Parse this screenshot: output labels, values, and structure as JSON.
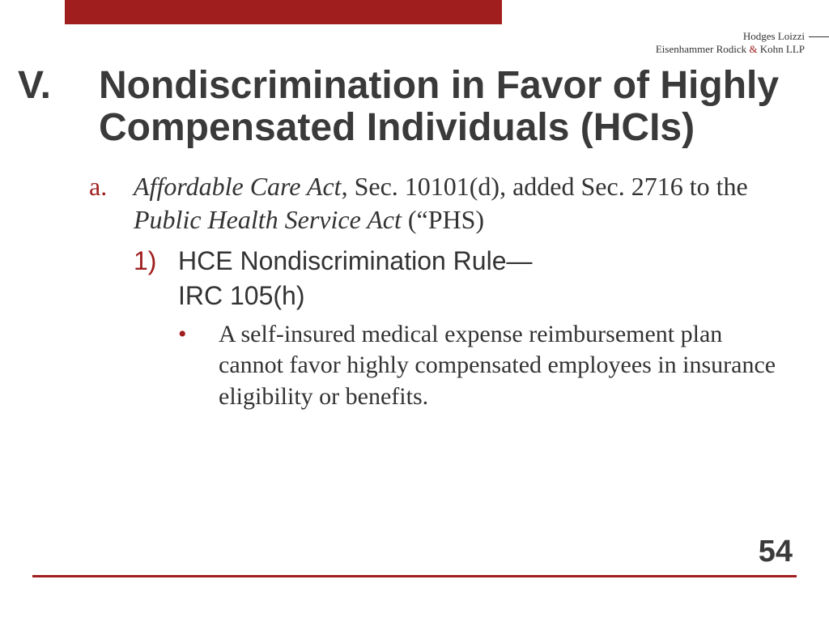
{
  "colors": {
    "accent": "#a01e1e",
    "text": "#3a3a3a",
    "background": "#ffffff"
  },
  "firm": {
    "line1": "Hodges Loizzi",
    "line2_a": "Eisenhammer Rodick ",
    "line2_amp": "&",
    "line2_b": " Kohn LLP"
  },
  "heading": {
    "roman": "V.",
    "title": "Nondiscrimination in Favor of Highly Compensated Individuals (HCIs)"
  },
  "content": {
    "a_marker": "a.",
    "a_ital1": "Affordable Care Act",
    "a_mid": ", Sec. 10101(d), added Sec. 2716 to the ",
    "a_ital2": "Public Health Service Act",
    "a_end": " (“PHS)",
    "one_marker": "1)",
    "one_text": "HCE Nondiscrimination Rule—",
    "one_text2": "IRC 105(h)",
    "bullet_marker": "•",
    "bullet_text": "A self-insured medical expense reimbursement plan cannot favor highly compensated employees in insurance eligibility or benefits."
  },
  "page_number": "54"
}
